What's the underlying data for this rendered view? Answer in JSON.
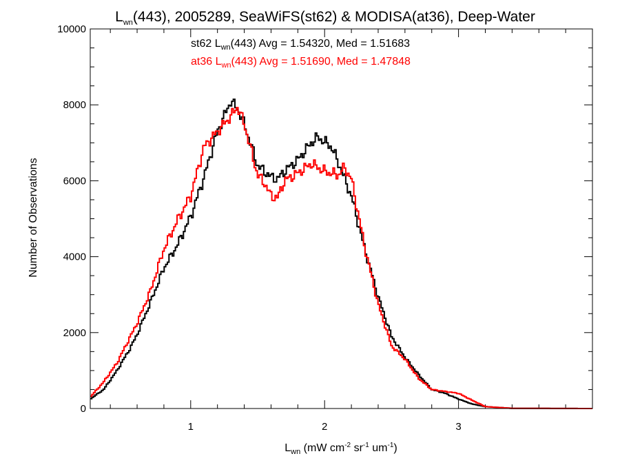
{
  "chart_data": {
    "type": "line",
    "title": {
      "lwn": "L",
      "lwn_sub": "wn",
      "rest": "(443), 2005289, SeaWiFS(st62) & MODISA(at36), Deep-Water"
    },
    "xlabel": {
      "l": "L",
      "sub": "wn",
      "p1": " (mW cm",
      "sup1": "-2",
      "p2": " sr",
      "sup2": "-1",
      "p3": " um",
      "sup3": "-1",
      "p4": ")"
    },
    "ylabel": "Number of Observations",
    "xlim": [
      0.25,
      4.0
    ],
    "ylim": [
      0,
      10000
    ],
    "x_ticks": [
      1,
      2,
      3
    ],
    "x_tick_labels": [
      "1",
      "2",
      "3"
    ],
    "y_ticks": [
      0,
      2000,
      4000,
      6000,
      8000,
      10000
    ],
    "y_tick_labels": [
      "0",
      "2000",
      "4000",
      "6000",
      "8000",
      "10000"
    ],
    "stats": [
      {
        "prefix": "st62 L",
        "sub": "wn",
        "rest": "(443) Avg = 1.54320, Med = 1.51683",
        "color": "#000000"
      },
      {
        "prefix": "at36 L",
        "sub": "wn",
        "rest": "(443) Avg = 1.51690, Med = 1.47848",
        "color": "#ff0000"
      }
    ],
    "series": [
      {
        "color": "#000000",
        "points": [
          [
            0.25,
            250
          ],
          [
            0.35,
            500
          ],
          [
            0.45,
            1000
          ],
          [
            0.55,
            1600
          ],
          [
            0.6,
            1950
          ],
          [
            0.7,
            2800
          ],
          [
            0.8,
            3700
          ],
          [
            0.9,
            4300
          ],
          [
            1.0,
            5050
          ],
          [
            1.1,
            6100
          ],
          [
            1.2,
            7300
          ],
          [
            1.3,
            8100
          ],
          [
            1.35,
            7900
          ],
          [
            1.4,
            7500
          ],
          [
            1.5,
            6400
          ],
          [
            1.6,
            6100
          ],
          [
            1.65,
            6050
          ],
          [
            1.7,
            6250
          ],
          [
            1.8,
            6550
          ],
          [
            1.9,
            7000
          ],
          [
            1.95,
            7150
          ],
          [
            2.05,
            6900
          ],
          [
            2.1,
            6500
          ],
          [
            2.2,
            5600
          ],
          [
            2.3,
            4200
          ],
          [
            2.4,
            2950
          ],
          [
            2.5,
            1900
          ],
          [
            2.6,
            1350
          ],
          [
            2.7,
            900
          ],
          [
            2.8,
            500
          ],
          [
            2.9,
            400
          ],
          [
            3.0,
            250
          ],
          [
            3.1,
            120
          ],
          [
            3.2,
            50
          ],
          [
            3.4,
            5
          ],
          [
            4.0,
            0
          ]
        ]
      },
      {
        "color": "#ff0000",
        "points": [
          [
            0.25,
            300
          ],
          [
            0.35,
            700
          ],
          [
            0.45,
            1200
          ],
          [
            0.55,
            1900
          ],
          [
            0.6,
            2250
          ],
          [
            0.7,
            3100
          ],
          [
            0.8,
            4200
          ],
          [
            0.9,
            4950
          ],
          [
            1.0,
            5600
          ],
          [
            1.1,
            6900
          ],
          [
            1.2,
            7300
          ],
          [
            1.3,
            7700
          ],
          [
            1.35,
            7950
          ],
          [
            1.4,
            7500
          ],
          [
            1.5,
            6150
          ],
          [
            1.55,
            5950
          ],
          [
            1.6,
            5600
          ],
          [
            1.65,
            5550
          ],
          [
            1.7,
            6000
          ],
          [
            1.8,
            6200
          ],
          [
            1.9,
            6450
          ],
          [
            2.0,
            6250
          ],
          [
            2.1,
            6150
          ],
          [
            2.15,
            6350
          ],
          [
            2.2,
            6050
          ],
          [
            2.3,
            4250
          ],
          [
            2.4,
            2750
          ],
          [
            2.5,
            1650
          ],
          [
            2.6,
            1300
          ],
          [
            2.7,
            800
          ],
          [
            2.8,
            500
          ],
          [
            2.9,
            450
          ],
          [
            3.0,
            400
          ],
          [
            3.1,
            220
          ],
          [
            3.2,
            50
          ],
          [
            3.4,
            5
          ],
          [
            4.0,
            0
          ]
        ]
      }
    ]
  }
}
